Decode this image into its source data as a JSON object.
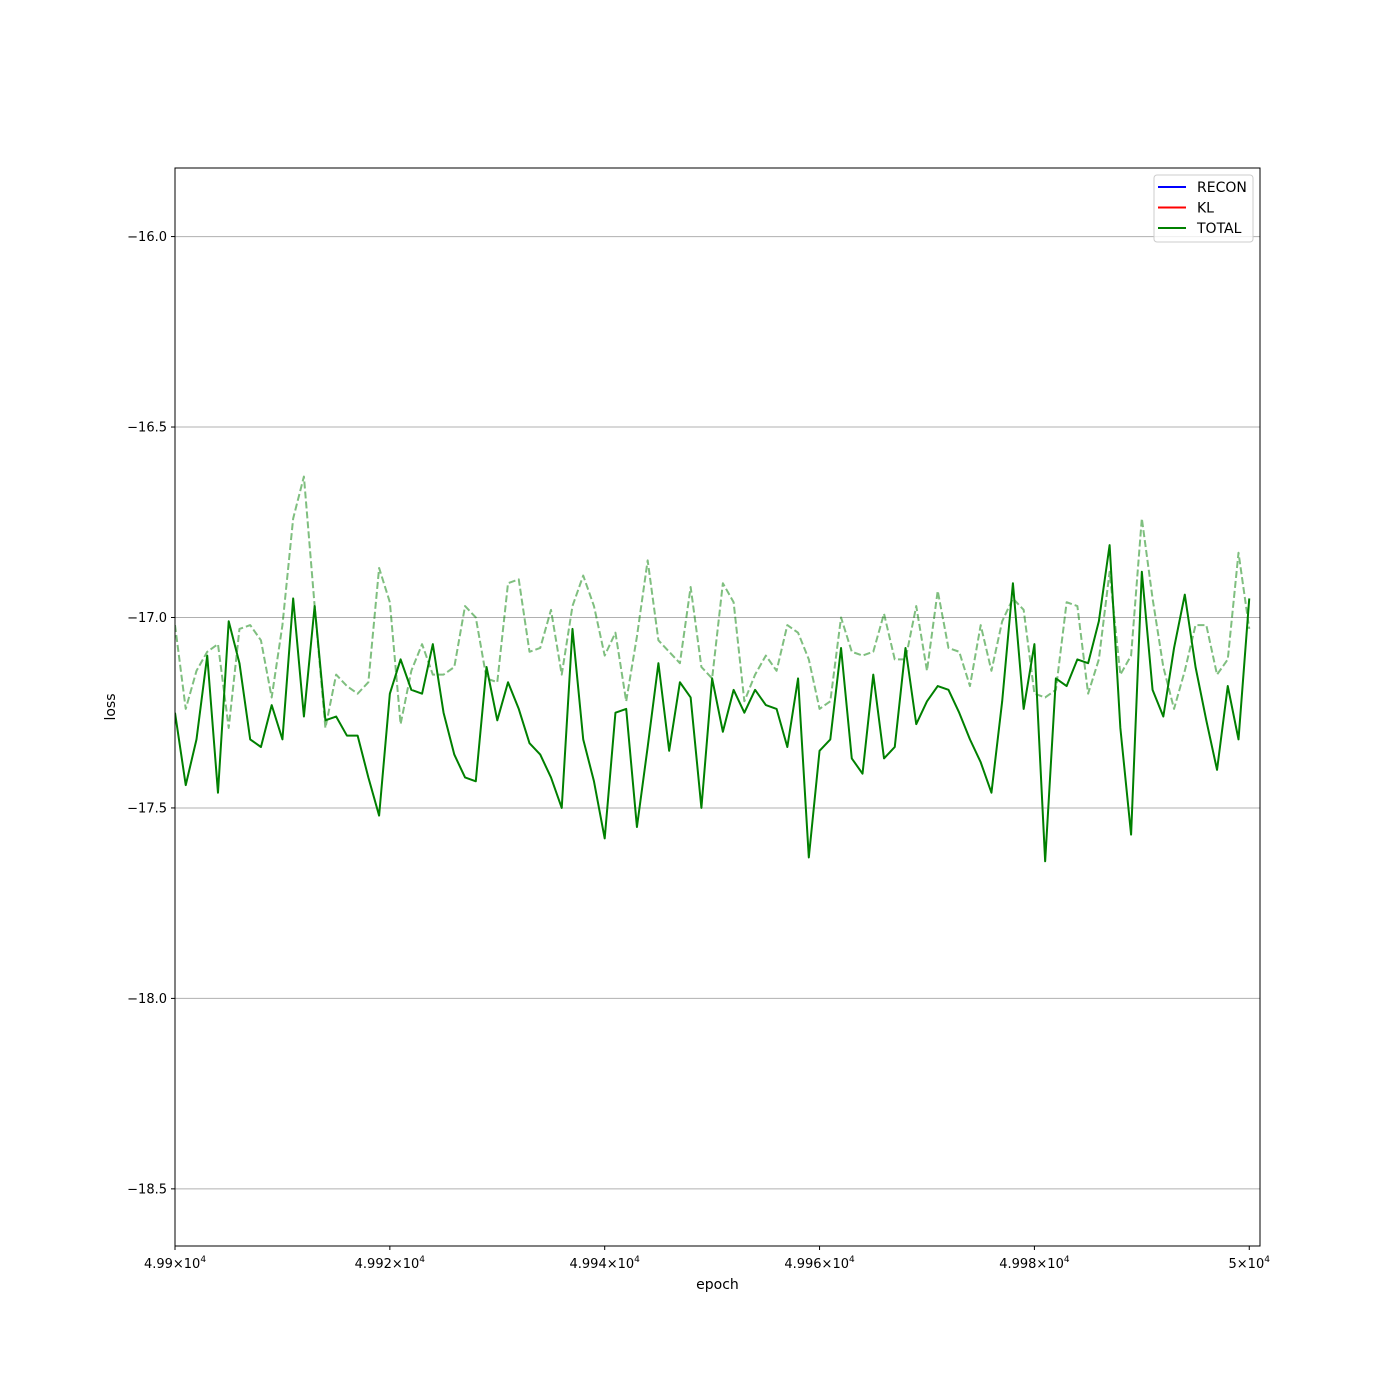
{
  "chart_data": {
    "type": "line",
    "xlabel": "epoch",
    "ylabel": "loss",
    "xlim": [
      49900,
      50001
    ],
    "ylim": [
      -18.65,
      -15.82
    ],
    "x_ticks": [
      {
        "value": 49900,
        "mantissa": "4.99",
        "exp": "4"
      },
      {
        "value": 49920,
        "mantissa": "4.992",
        "exp": "4"
      },
      {
        "value": 49940,
        "mantissa": "4.994",
        "exp": "4"
      },
      {
        "value": 49960,
        "mantissa": "4.996",
        "exp": "4"
      },
      {
        "value": 49980,
        "mantissa": "4.998",
        "exp": "4"
      },
      {
        "value": 50000,
        "mantissa": "5",
        "exp": "4"
      }
    ],
    "y_ticks": [
      {
        "value": -16.0,
        "label": "−16.0"
      },
      {
        "value": -16.5,
        "label": "−16.5"
      },
      {
        "value": -17.0,
        "label": "−17.0"
      },
      {
        "value": -17.5,
        "label": "−17.5"
      },
      {
        "value": -18.0,
        "label": "−18.0"
      },
      {
        "value": -18.5,
        "label": "−18.5"
      }
    ],
    "grid": "horizontal",
    "legend_position": "top-right",
    "legend": [
      {
        "name": "RECON",
        "color": "#0000ff"
      },
      {
        "name": "KL",
        "color": "#ff0000"
      },
      {
        "name": "TOTAL",
        "color": "#008000"
      }
    ],
    "x_start": 49900,
    "series": [
      {
        "style": "solid",
        "color": "#008000",
        "opacity": 1,
        "values": [
          -17.25,
          -17.44,
          -17.32,
          -17.1,
          -17.46,
          -17.01,
          -17.12,
          -17.32,
          -17.34,
          -17.23,
          -17.32,
          -16.95,
          -17.26,
          -16.97,
          -17.27,
          -17.26,
          -17.31,
          -17.31,
          -17.42,
          -17.52,
          -17.2,
          -17.11,
          -17.19,
          -17.2,
          -17.07,
          -17.25,
          -17.36,
          -17.42,
          -17.43,
          -17.13,
          -17.27,
          -17.17,
          -17.24,
          -17.33,
          -17.36,
          -17.42,
          -17.5,
          -17.03,
          -17.32,
          -17.43,
          -17.58,
          -17.25,
          -17.24,
          -17.55,
          -17.34,
          -17.12,
          -17.35,
          -17.17,
          -17.21,
          -17.5,
          -17.16,
          -17.3,
          -17.19,
          -17.25,
          -17.19,
          -17.23,
          -17.24,
          -17.34,
          -17.16,
          -17.63,
          -17.35,
          -17.32,
          -17.08,
          -17.37,
          -17.41,
          -17.15,
          -17.37,
          -17.34,
          -17.08,
          -17.28,
          -17.22,
          -17.18,
          -17.19,
          -17.25,
          -17.32,
          -17.38,
          -17.46,
          -17.22,
          -16.91,
          -17.24,
          -17.07,
          -17.64,
          -17.16,
          -17.18,
          -17.11,
          -17.12,
          -17.01,
          -16.81,
          -17.29,
          -17.57,
          -16.88,
          -17.19,
          -17.26,
          -17.08,
          -16.94,
          -17.13,
          -17.27,
          -17.4,
          -17.18,
          -17.32,
          -16.95
        ]
      },
      {
        "style": "dashed",
        "color": "#008000",
        "opacity": 0.5,
        "values": [
          -17.02,
          -17.24,
          -17.14,
          -17.09,
          -17.07,
          -17.29,
          -17.03,
          -17.02,
          -17.06,
          -17.21,
          -17.02,
          -16.74,
          -16.63,
          -16.97,
          -17.29,
          -17.15,
          -17.18,
          -17.2,
          -17.17,
          -16.87,
          -16.96,
          -17.28,
          -17.14,
          -17.07,
          -17.15,
          -17.15,
          -17.13,
          -16.97,
          -17.0,
          -17.16,
          -17.17,
          -16.91,
          -16.9,
          -17.09,
          -17.08,
          -16.98,
          -17.15,
          -16.97,
          -16.89,
          -16.97,
          -17.1,
          -17.04,
          -17.22,
          -17.05,
          -16.85,
          -17.06,
          -17.09,
          -17.12,
          -16.92,
          -17.13,
          -17.16,
          -16.91,
          -16.96,
          -17.22,
          -17.15,
          -17.1,
          -17.14,
          -17.02,
          -17.04,
          -17.11,
          -17.24,
          -17.22,
          -17.0,
          -17.09,
          -17.1,
          -17.09,
          -16.99,
          -17.11,
          -17.11,
          -16.97,
          -17.14,
          -16.93,
          -17.08,
          -17.09,
          -17.18,
          -17.02,
          -17.14,
          -17.01,
          -16.95,
          -16.98,
          -17.2,
          -17.21,
          -17.19,
          -16.96,
          -16.97,
          -17.2,
          -17.11,
          -16.88,
          -17.15,
          -17.1,
          -16.74,
          -16.95,
          -17.13,
          -17.24,
          -17.14,
          -17.02,
          -17.02,
          -17.15,
          -17.11,
          -16.83,
          -17.03
        ]
      }
    ]
  }
}
